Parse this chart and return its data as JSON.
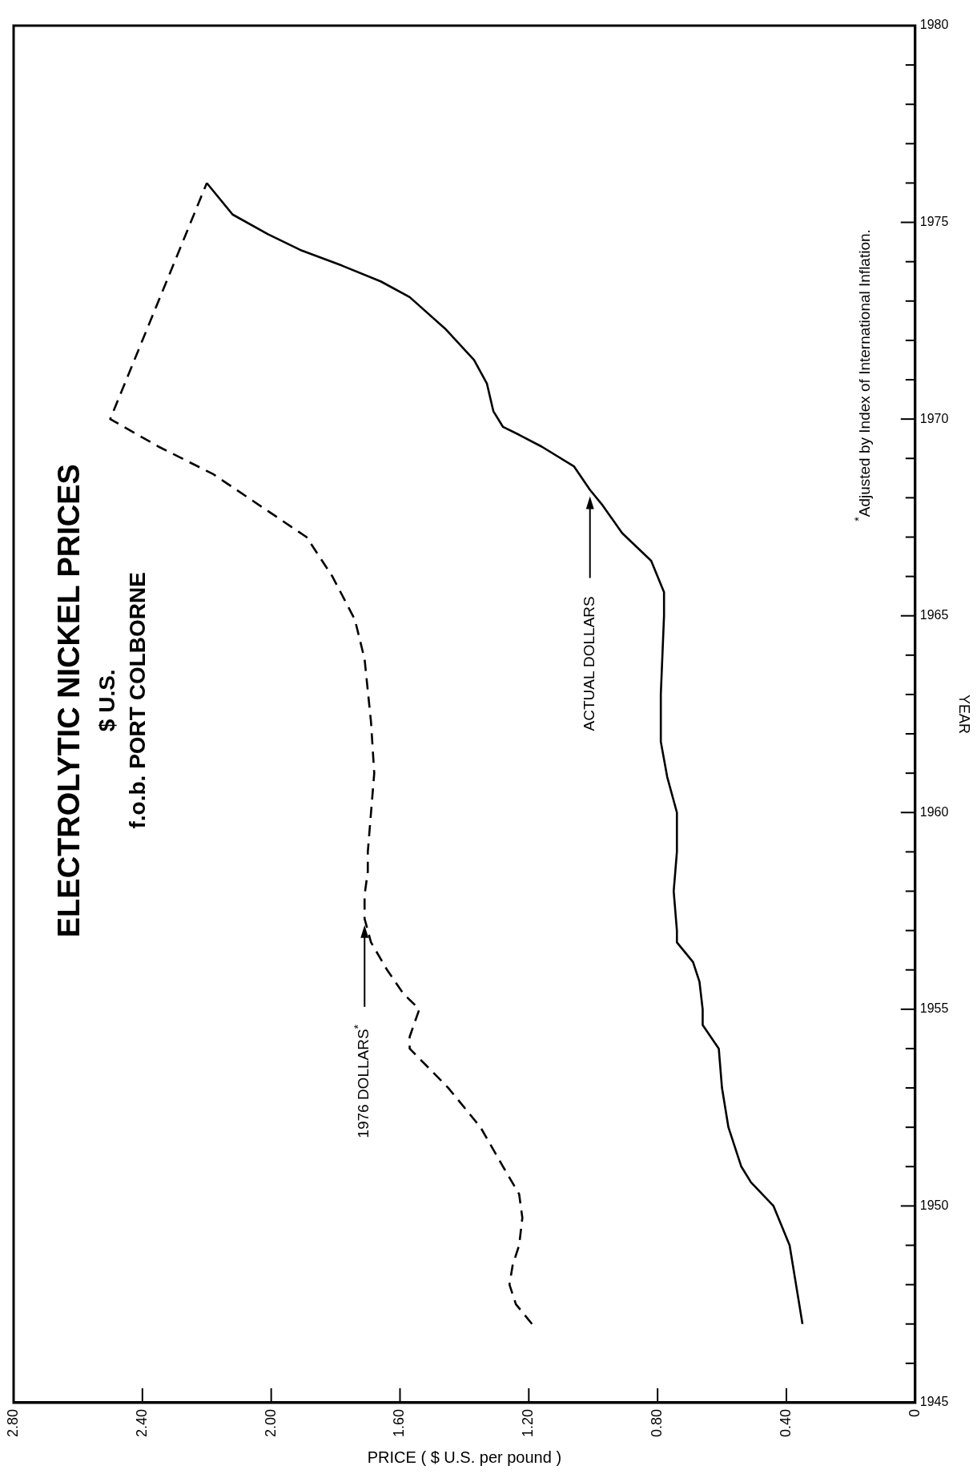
{
  "chart_data": {
    "type": "line",
    "title": "ELECTROLYTIC NICKEL PRICES",
    "subtitle": "$ U.S.\nf.o.b. PORT COLBORNE",
    "xlabel": "PRICE ( $ U.S. per pound )",
    "ylabel": "YEAR",
    "annotations": [
      "$^{*}$Adjusted by Index of International Inflation."
    ],
    "xlim": [
      2.8,
      0
    ],
    "ylim": [
      1945,
      1980
    ],
    "xticks": [
      0,
      {
        "value": 0.4,
        "label": "0.40"
      },
      {
        "value": 0.8,
        "label": "0.80"
      },
      {
        "value": 1.2,
        "label": "1.20"
      },
      {
        "value": 1.6,
        "label": "1.60"
      },
      {
        "value": 2.0,
        "label": "2.00"
      },
      {
        "value": 2.4,
        "label": "2.40"
      },
      {
        "value": 2.8,
        "label": "2.80"
      }
    ],
    "yticks": [
      1945,
      {
        "value": 1946,
        "label": null
      },
      {
        "value": 1947,
        "label": null
      },
      {
        "value": 1948,
        "label": null
      },
      {
        "value": 1949,
        "label": null
      },
      1950,
      {
        "value": 1951,
        "label": null
      },
      {
        "value": 1952,
        "label": null
      },
      {
        "value": 1953,
        "label": null
      },
      {
        "value": 1954,
        "label": null
      },
      1955,
      {
        "value": 1956,
        "label": null
      },
      {
        "value": 1957,
        "label": null
      },
      {
        "value": 1958,
        "label": null
      },
      {
        "value": 1959,
        "label": null
      },
      1960,
      {
        "value": 1961,
        "label": null
      },
      {
        "value": 1962,
        "label": null
      },
      {
        "value": 1963,
        "label": null
      },
      {
        "value": 1964,
        "label": null
      },
      1965,
      {
        "value": 1966,
        "label": null
      },
      {
        "value": 1967,
        "label": null
      },
      {
        "value": 1968,
        "label": null
      },
      {
        "value": 1969,
        "label": null
      },
      1970,
      {
        "value": 1971,
        "label": null
      },
      {
        "value": 1972,
        "label": null
      },
      {
        "value": 1973,
        "label": null
      },
      {
        "value": 1974,
        "label": null
      },
      1975,
      {
        "value": 1976,
        "label": null
      },
      {
        "value": 1977,
        "label": null
      },
      {
        "value": 1978,
        "label": null
      },
      {
        "value": 1979,
        "label": null
      },
      1980
    ],
    "marker": "none",
    "series": [
      {
        "name": "ACTUAL DOLLARS",
        "color": "#000000",
        "line_style": "solid",
        "values": [
          1947,
          1948,
          1949,
          1950,
          1950.6,
          1951,
          1952,
          1953,
          1954,
          1954.6,
          1955,
          1955.7,
          1956.2,
          1956.7,
          1957,
          1958,
          1959,
          1960,
          1960.9,
          1961.8,
          1963,
          1965,
          1965.6,
          1966.4,
          1967.1,
          1967.8,
          1968.2,
          1968.8,
          1969.3,
          1969.6,
          1969.8,
          1970.2,
          1970.9,
          1971.5,
          1972.3,
          1973.1,
          1973.5,
          1973.9,
          1974.3,
          1974.7,
          1975.2,
          1976
        ],
        "x": [
          0.35,
          0.37,
          0.39,
          0.44,
          0.51,
          0.54,
          0.58,
          0.6,
          0.61,
          0.66,
          0.66,
          0.67,
          0.69,
          0.74,
          0.74,
          0.75,
          0.74,
          0.74,
          0.77,
          0.79,
          0.79,
          0.78,
          0.78,
          0.82,
          0.91,
          0.97,
          1.01,
          1.06,
          1.16,
          1.23,
          1.28,
          1.31,
          1.33,
          1.37,
          1.46,
          1.57,
          1.66,
          1.78,
          1.91,
          2.01,
          2.12,
          2.2
        ]
      },
      {
        "name": "1976 DOLLARS$^{*}$",
        "color": "#000000",
        "line_style": "dashed",
        "values": [
          1947,
          1947.5,
          1948,
          1948.5,
          1949,
          1949.7,
          1950.3,
          1951,
          1952,
          1953,
          1954,
          1954.3,
          1955,
          1955.4,
          1956,
          1956.7,
          1957.3,
          1957.9,
          1958.5,
          1959,
          1960,
          1961,
          1962.3,
          1963.9,
          1964.9,
          1966,
          1967,
          1968.6,
          1969.3,
          1970,
          1976
        ],
        "x": [
          1.19,
          1.24,
          1.26,
          1.25,
          1.23,
          1.22,
          1.23,
          1.28,
          1.35,
          1.45,
          1.57,
          1.57,
          1.54,
          1.59,
          1.64,
          1.69,
          1.71,
          1.71,
          1.7,
          1.7,
          1.69,
          1.68,
          1.69,
          1.71,
          1.74,
          1.81,
          1.89,
          2.18,
          2.35,
          2.5,
          2.2
        ]
      }
    ]
  }
}
